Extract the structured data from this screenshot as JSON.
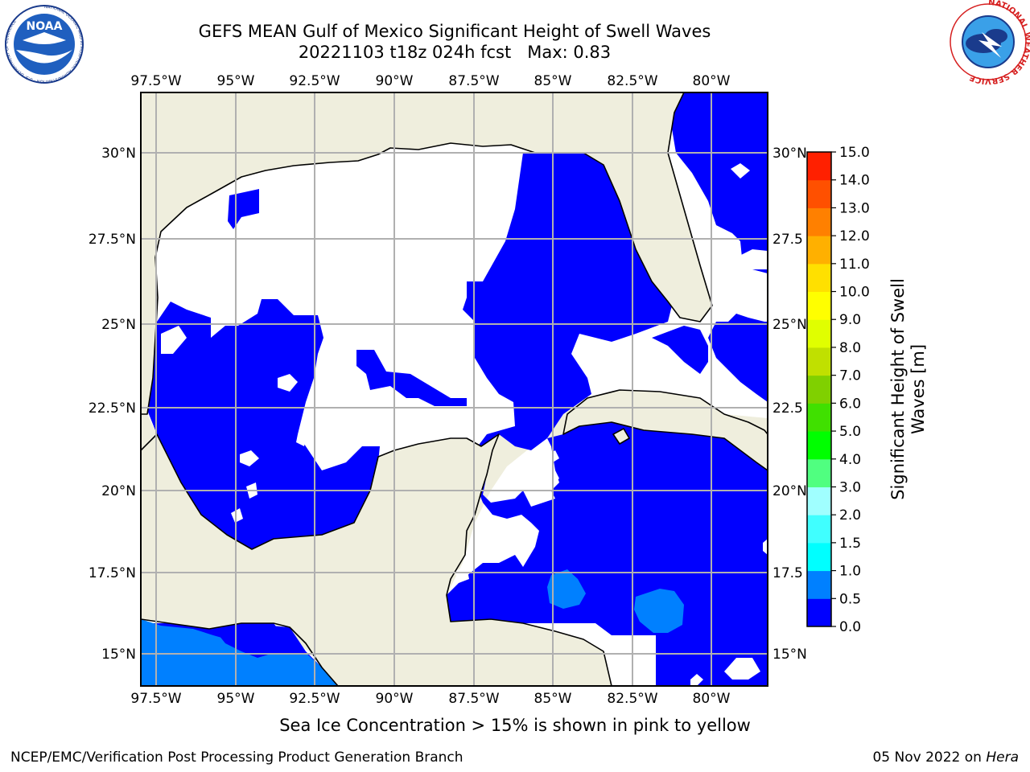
{
  "header": {
    "title_line1": "GEFS MEAN Gulf of Mexico Significant Height of Swell Waves",
    "title_line2": "20221103 t18z 024h fcst   Max: 0.83"
  },
  "logos": {
    "noaa_text": "NOAA",
    "noaa_ring_text": "NATIONAL OCEANIC AND ATMOSPHERIC ADMINISTRATION · U.S. DEPARTMENT OF COMMERCE",
    "nws_ring_text": "NATIONAL WEATHER SERVICE"
  },
  "map": {
    "lon_labels": [
      "97.5°W",
      "95°W",
      "92.5°W",
      "90°W",
      "87.5°W",
      "85°W",
      "82.5°W",
      "80°W"
    ],
    "lat_labels_left": [
      "30°N",
      "27.5°N",
      "25°N",
      "22.5°N",
      "20°N",
      "17.5°N",
      "15°N"
    ],
    "lat_labels_right": [
      "30°N",
      "27.5",
      "25°N",
      "22.5",
      "20°N",
      "17.5",
      "15°N"
    ],
    "colors": {
      "land": "#efeedd",
      "ocean_zero": "#ffffff",
      "bin_0_0_5": "#0000ff",
      "bin_0_5_1_0": "#0080ff",
      "grid": "#b0b0b0"
    }
  },
  "colorbar": {
    "label": "Significant Height of Swell Waves [m]",
    "label_line1": "Significant Height of Swell",
    "label_line2": "Waves [m]",
    "ticks": [
      "15.0",
      "14.0",
      "13.0",
      "12.0",
      "11.0",
      "10.0",
      "9.0",
      "8.0",
      "7.0",
      "6.0",
      "5.0",
      "4.0",
      "3.0",
      "2.0",
      "1.5",
      "1.0",
      "0.5",
      "0.0"
    ],
    "colors_bottom_to_top": [
      "#0000ff",
      "#0080ff",
      "#00ffff",
      "#40ffff",
      "#a0ffff",
      "#50ff80",
      "#00ff00",
      "#40e000",
      "#80d000",
      "#c0e000",
      "#e0ff00",
      "#ffff00",
      "#ffe000",
      "#ffb000",
      "#ff8000",
      "#ff5000",
      "#ff2000",
      "#ff0000"
    ]
  },
  "footer": {
    "sea_ice_note": "Sea Ice Concentration > 15% is shown in pink to yellow",
    "credit": "NCEP/EMC/Verification Post Processing Product Generation Branch",
    "date_text": "05 Nov 2022 on ",
    "date_machine": "Hera"
  }
}
